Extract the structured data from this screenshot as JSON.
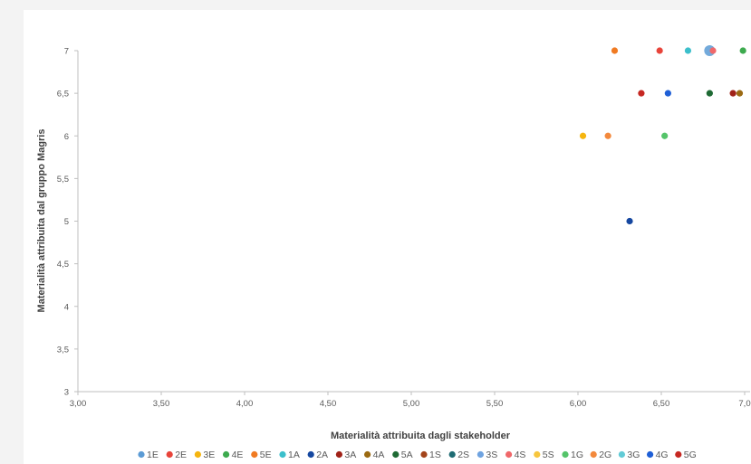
{
  "chart_data": {
    "type": "scatter",
    "title": "",
    "xlabel": "Materialità attribuita dagli stakeholder",
    "ylabel": "Materialità attribuita dal gruppo Magris",
    "xlim": [
      3.0,
      7.0
    ],
    "ylim": [
      3.0,
      7.0
    ],
    "x_ticks": [
      3.0,
      3.5,
      4.0,
      4.5,
      5.0,
      5.5,
      6.0,
      6.5,
      7.0
    ],
    "x_tick_labels": [
      "3,00",
      "3,50",
      "4,00",
      "4,50",
      "5,00",
      "5,50",
      "6,00",
      "6,50",
      "7,0"
    ],
    "y_ticks": [
      3.0,
      3.5,
      4.0,
      4.5,
      5.0,
      5.5,
      6.0,
      6.5,
      7.0
    ],
    "y_tick_labels": [
      "3",
      "3,5",
      "4",
      "4,5",
      "5",
      "5,5",
      "6",
      "6,5",
      "7"
    ],
    "grid": false,
    "legend_position": "bottom",
    "series": [
      {
        "name": "1E",
        "color": "#5b9bd5",
        "points": [
          [
            6.79,
            7.0
          ]
        ],
        "large": true
      },
      {
        "name": "2E",
        "color": "#e8443a",
        "points": [
          [
            6.49,
            7.0
          ]
        ]
      },
      {
        "name": "3E",
        "color": "#f5b50f",
        "points": [
          [
            6.03,
            6.0
          ]
        ]
      },
      {
        "name": "4E",
        "color": "#3daa4e",
        "points": [
          [
            6.99,
            7.0
          ]
        ]
      },
      {
        "name": "5E",
        "color": "#f07a22",
        "points": [
          [
            6.22,
            7.0
          ]
        ]
      },
      {
        "name": "1A",
        "color": "#3bbfcb",
        "points": [
          [
            6.66,
            7.0
          ]
        ]
      },
      {
        "name": "2A",
        "color": "#1547a0",
        "points": [
          [
            6.31,
            5.0
          ]
        ]
      },
      {
        "name": "3A",
        "color": "#a02218",
        "points": [
          [
            6.93,
            6.5
          ]
        ]
      },
      {
        "name": "4A",
        "color": "#9b6a12",
        "points": [
          [
            6.97,
            6.5
          ]
        ]
      },
      {
        "name": "5A",
        "color": "#1e6a34",
        "points": [
          [
            6.79,
            6.5
          ]
        ]
      },
      {
        "name": "1S",
        "color": "#a3441a",
        "points": []
      },
      {
        "name": "2S",
        "color": "#1e6b73",
        "points": []
      },
      {
        "name": "3S",
        "color": "#6fa3e0",
        "points": []
      },
      {
        "name": "4S",
        "color": "#f0686a",
        "points": [
          [
            6.81,
            7.0
          ]
        ]
      },
      {
        "name": "5S",
        "color": "#f7c63e",
        "points": []
      },
      {
        "name": "1G",
        "color": "#55c46a",
        "points": [
          [
            6.52,
            6.0
          ]
        ]
      },
      {
        "name": "2G",
        "color": "#f3893c",
        "points": [
          [
            6.18,
            6.0
          ]
        ]
      },
      {
        "name": "3G",
        "color": "#62cbd6",
        "points": []
      },
      {
        "name": "4G",
        "color": "#1f5fd6",
        "points": [
          [
            6.54,
            6.5
          ]
        ]
      },
      {
        "name": "5G",
        "color": "#c62822",
        "points": [
          [
            6.38,
            6.5
          ]
        ]
      }
    ]
  }
}
